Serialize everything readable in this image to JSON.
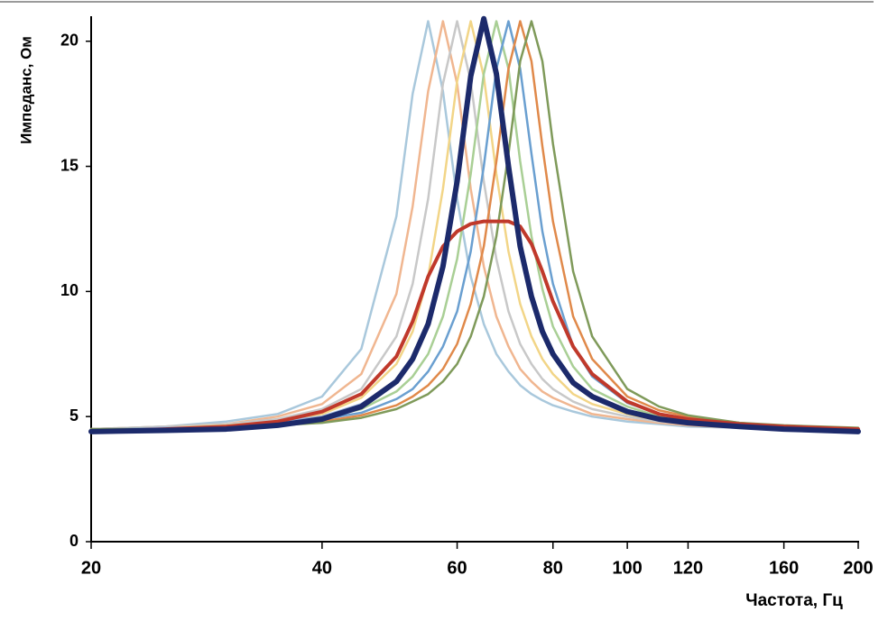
{
  "chart_data": {
    "type": "line",
    "xlabel": "Частота, Гц",
    "ylabel": "Импеданс, Ом",
    "xscale": "log",
    "xlim": [
      20,
      200
    ],
    "xticks": [
      20,
      40,
      60,
      80,
      100,
      120,
      160,
      200
    ],
    "ylim": [
      0,
      21
    ],
    "yticks": [
      0,
      5,
      10,
      15,
      20
    ],
    "x": [
      20,
      25,
      30,
      35,
      40,
      45,
      50,
      52.5,
      55,
      57.5,
      60,
      62.5,
      65,
      67.5,
      70,
      72.5,
      75,
      77.5,
      80,
      85,
      90,
      100,
      110,
      120,
      140,
      160,
      200
    ],
    "series": [
      {
        "color": "#a9c8dc",
        "linewidth": 2.5,
        "values": [
          4.5,
          4.6,
          4.8,
          5.1,
          5.8,
          7.7,
          13.0,
          17.9,
          20.8,
          18.0,
          13.7,
          10.6,
          8.7,
          7.5,
          6.8,
          6.25,
          5.9,
          5.65,
          5.45,
          5.2,
          5.0,
          4.8,
          4.7,
          4.6,
          4.55,
          4.5,
          4.5
        ]
      },
      {
        "color": "#f0b690",
        "linewidth": 2.5,
        "values": [
          4.5,
          4.6,
          4.7,
          5.0,
          5.5,
          6.7,
          9.9,
          13.4,
          18.0,
          20.8,
          18.3,
          14.1,
          11.0,
          9.0,
          7.8,
          6.9,
          6.4,
          6.0,
          5.75,
          5.4,
          5.1,
          4.9,
          4.75,
          4.65,
          4.55,
          4.5,
          4.5
        ]
      },
      {
        "color": "#c8c8c8",
        "linewidth": 2.5,
        "values": [
          4.5,
          4.6,
          4.7,
          4.9,
          5.3,
          6.1,
          8.2,
          10.3,
          13.7,
          18.3,
          20.8,
          18.4,
          14.4,
          11.3,
          9.2,
          7.9,
          7.1,
          6.5,
          6.1,
          5.6,
          5.3,
          5.0,
          4.8,
          4.7,
          4.6,
          4.5,
          4.5
        ]
      },
      {
        "color": "#f2d587",
        "linewidth": 2.5,
        "values": [
          4.5,
          4.55,
          4.65,
          4.8,
          5.1,
          5.75,
          7.1,
          8.4,
          10.6,
          14.1,
          18.4,
          20.8,
          18.6,
          14.7,
          11.6,
          9.5,
          8.2,
          7.3,
          6.7,
          5.9,
          5.5,
          5.1,
          4.85,
          4.75,
          4.6,
          4.55,
          4.5
        ]
      },
      {
        "color": "#9db7de",
        "linewidth": 2.5,
        "values": [
          4.5,
          4.55,
          4.6,
          4.8,
          5.0,
          5.5,
          6.4,
          7.3,
          8.7,
          11.0,
          14.4,
          18.6,
          20.8,
          18.7,
          15.0,
          11.8,
          9.8,
          8.4,
          7.5,
          6.35,
          5.8,
          5.2,
          4.9,
          4.8,
          4.65,
          4.55,
          4.5
        ]
      },
      {
        "color": "#a9cf95",
        "linewidth": 2.5,
        "values": [
          4.5,
          4.5,
          4.6,
          4.7,
          4.95,
          5.3,
          6.0,
          6.6,
          7.5,
          9.0,
          11.3,
          14.7,
          18.7,
          20.8,
          18.9,
          15.2,
          12.2,
          10.1,
          8.6,
          7.0,
          6.1,
          5.4,
          5.0,
          4.85,
          4.7,
          4.6,
          4.5
        ]
      },
      {
        "color": "#6a9fd0",
        "linewidth": 2.5,
        "values": [
          4.5,
          4.5,
          4.6,
          4.7,
          4.9,
          5.15,
          5.7,
          6.1,
          6.8,
          7.8,
          9.2,
          11.6,
          15.0,
          18.9,
          20.8,
          18.9,
          15.5,
          12.4,
          10.3,
          7.8,
          6.6,
          5.55,
          5.1,
          4.9,
          4.7,
          4.6,
          4.5
        ]
      },
      {
        "color": "#e0894a",
        "linewidth": 2.5,
        "values": [
          4.5,
          4.5,
          4.55,
          4.65,
          4.8,
          5.05,
          5.45,
          5.8,
          6.25,
          6.9,
          7.9,
          9.5,
          11.8,
          15.2,
          18.9,
          20.8,
          19.2,
          15.8,
          12.8,
          9.0,
          7.3,
          5.8,
          5.25,
          5.0,
          4.75,
          4.6,
          4.5
        ]
      },
      {
        "color": "#7f9a5a",
        "linewidth": 2.5,
        "values": [
          4.5,
          4.5,
          4.55,
          4.65,
          4.75,
          4.95,
          5.3,
          5.6,
          5.9,
          6.4,
          7.1,
          8.2,
          9.8,
          12.2,
          15.5,
          19.2,
          20.8,
          19.2,
          15.9,
          10.8,
          8.2,
          6.1,
          5.4,
          5.05,
          4.75,
          4.65,
          4.55
        ]
      },
      {
        "color": "#c0392b",
        "linewidth": 4,
        "values": [
          4.4,
          4.5,
          4.6,
          4.8,
          5.2,
          5.9,
          7.4,
          8.8,
          10.6,
          11.8,
          12.4,
          12.7,
          12.8,
          12.8,
          12.8,
          12.6,
          11.9,
          10.8,
          9.6,
          7.8,
          6.7,
          5.6,
          5.1,
          4.9,
          4.7,
          4.6,
          4.5
        ]
      },
      {
        "color": "#1c2a6b",
        "linewidth": 6,
        "values": [
          4.4,
          4.45,
          4.5,
          4.65,
          4.9,
          5.4,
          6.4,
          7.3,
          8.7,
          11.0,
          14.4,
          18.6,
          20.9,
          18.7,
          15.0,
          11.8,
          9.8,
          8.4,
          7.5,
          6.35,
          5.8,
          5.2,
          4.9,
          4.75,
          4.6,
          4.5,
          4.4
        ]
      }
    ]
  }
}
